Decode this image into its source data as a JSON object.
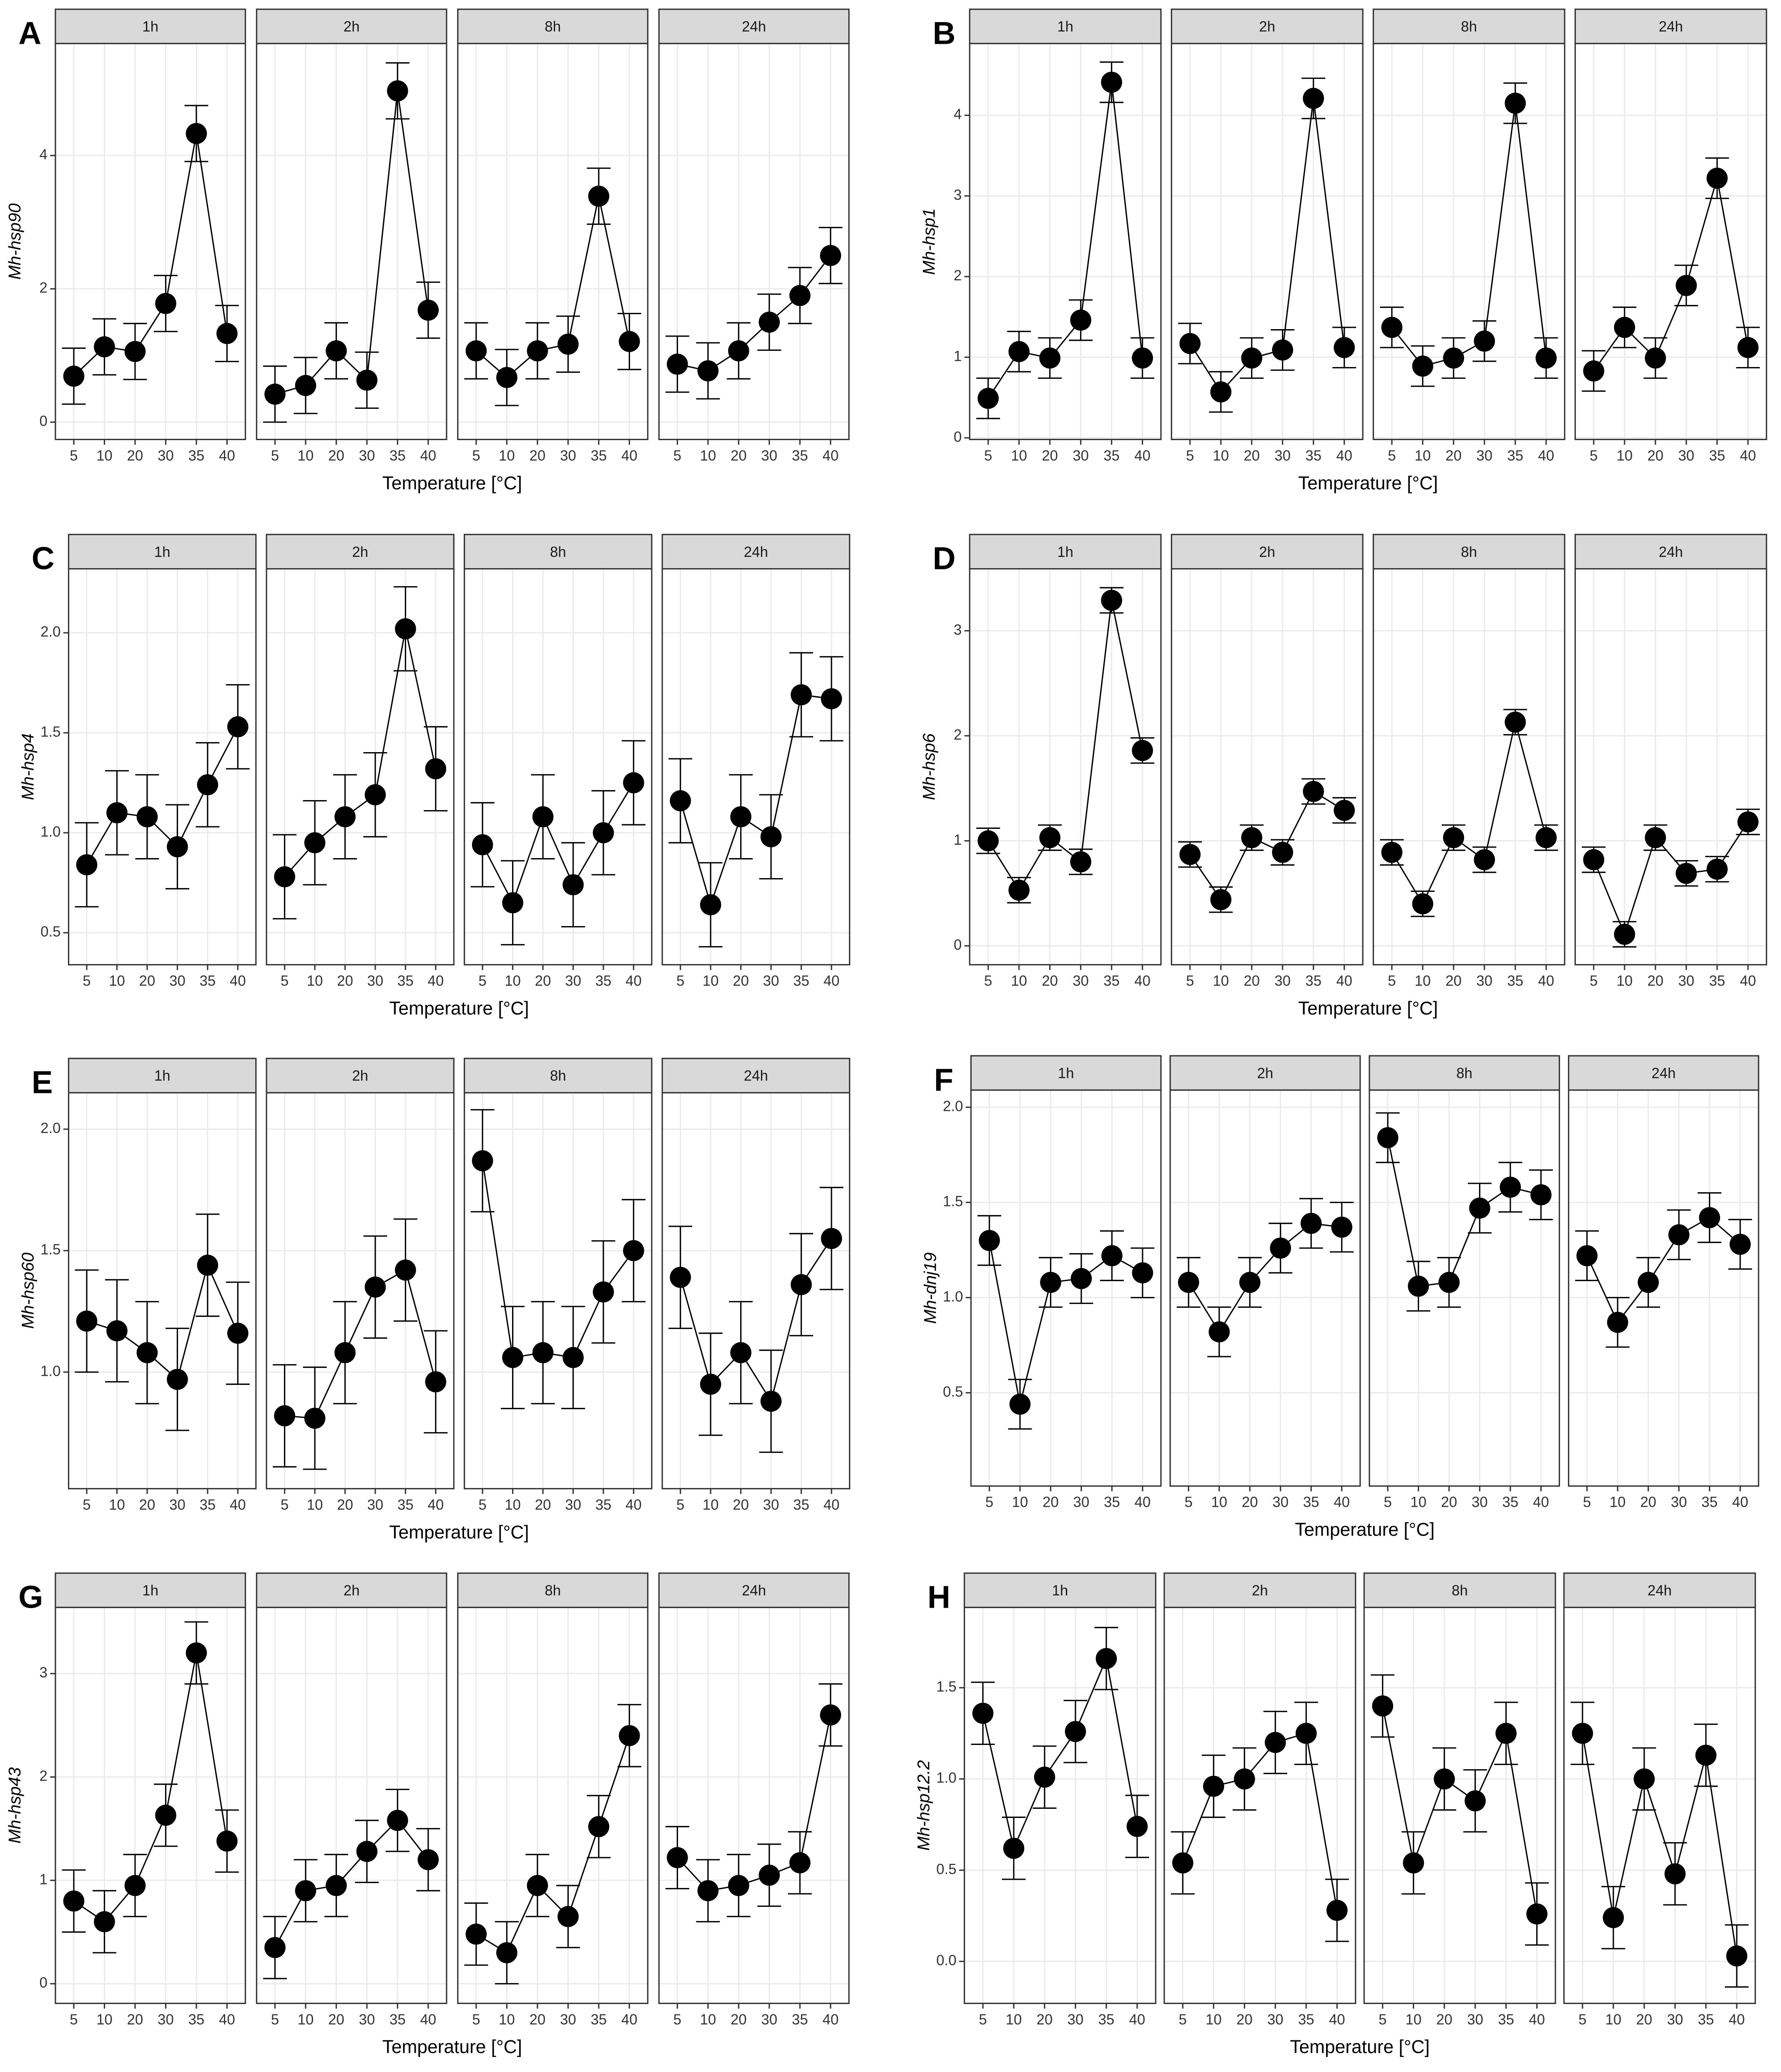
{
  "chart_data": [
    {
      "type": "line",
      "panel_label": "A",
      "ylabel": "Mh-hsp90",
      "xlabel": "Temperature [°C]",
      "color": "#000000",
      "categories": [
        "5",
        "10",
        "20",
        "30",
        "35",
        "40"
      ],
      "ylim": [
        -0.26,
        5.68
      ],
      "yticks": [
        0,
        2,
        4
      ],
      "grid": true,
      "facets": [
        {
          "title": "1h",
          "values": [
            0.69,
            1.13,
            1.06,
            1.78,
            4.33,
            1.33
          ],
          "errors": [
            0.42,
            0.42,
            0.42,
            0.42,
            0.42,
            0.42
          ]
        },
        {
          "title": "2h",
          "values": [
            0.42,
            0.55,
            1.07,
            0.63,
            4.97,
            1.68
          ],
          "errors": [
            0.42,
            0.42,
            0.42,
            0.42,
            0.42,
            0.42
          ]
        },
        {
          "title": "8h",
          "values": [
            1.07,
            0.67,
            1.07,
            1.17,
            3.39,
            1.21
          ],
          "errors": [
            0.42,
            0.42,
            0.42,
            0.42,
            0.42,
            0.42
          ]
        },
        {
          "title": "24h",
          "values": [
            0.87,
            0.77,
            1.07,
            1.5,
            1.9,
            2.5
          ],
          "errors": [
            0.42,
            0.42,
            0.42,
            0.42,
            0.42,
            0.42
          ]
        }
      ]
    },
    {
      "type": "line",
      "panel_label": "B",
      "ylabel": "Mh-hsp1",
      "xlabel": "Temperature [°C]",
      "color": "#000000",
      "categories": [
        "5",
        "10",
        "20",
        "30",
        "35",
        "40"
      ],
      "ylim": [
        -0.02,
        4.89
      ],
      "yticks": [
        0,
        1,
        2,
        3,
        4
      ],
      "grid": true,
      "facets": [
        {
          "title": "1h",
          "values": [
            0.49,
            1.07,
            0.99,
            1.46,
            4.41,
            0.99
          ],
          "errors": [
            0.25,
            0.25,
            0.25,
            0.25,
            0.25,
            0.25
          ]
        },
        {
          "title": "2h",
          "values": [
            1.17,
            0.57,
            0.99,
            1.09,
            4.21,
            1.12
          ],
          "errors": [
            0.25,
            0.25,
            0.25,
            0.25,
            0.25,
            0.25
          ]
        },
        {
          "title": "8h",
          "values": [
            1.37,
            0.89,
            0.99,
            1.2,
            4.15,
            0.99
          ],
          "errors": [
            0.25,
            0.25,
            0.25,
            0.25,
            0.25,
            0.25
          ]
        },
        {
          "title": "24h",
          "values": [
            0.83,
            1.37,
            0.99,
            1.89,
            3.22,
            1.12
          ],
          "errors": [
            0.25,
            0.25,
            0.25,
            0.25,
            0.25,
            0.25
          ]
        }
      ]
    },
    {
      "type": "line",
      "panel_label": "C",
      "ylabel": "Mh-hsp4",
      "xlabel": "Temperature [°C]",
      "color": "#000000",
      "categories": [
        "5",
        "10",
        "20",
        "30",
        "35",
        "40"
      ],
      "ylim": [
        0.34,
        2.32
      ],
      "yticks": [
        0.5,
        {
          "value": 1,
          "label": "1.0"
        },
        1.5,
        {
          "value": 2,
          "label": "2.0"
        }
      ],
      "grid": true,
      "facets": [
        {
          "title": "1h",
          "values": [
            0.84,
            1.1,
            1.08,
            0.93,
            1.24,
            1.53
          ],
          "errors": [
            0.21,
            0.21,
            0.21,
            0.21,
            0.21,
            0.21
          ]
        },
        {
          "title": "2h",
          "values": [
            0.78,
            0.95,
            1.08,
            1.19,
            2.02,
            1.32
          ],
          "errors": [
            0.21,
            0.21,
            0.21,
            0.21,
            0.21,
            0.21
          ]
        },
        {
          "title": "8h",
          "values": [
            0.94,
            0.65,
            1.08,
            0.74,
            1.0,
            1.25
          ],
          "errors": [
            0.21,
            0.21,
            0.21,
            0.21,
            0.21,
            0.21
          ]
        },
        {
          "title": "24h",
          "values": [
            1.16,
            0.64,
            1.08,
            0.98,
            1.69,
            1.67
          ],
          "errors": [
            0.21,
            0.21,
            0.21,
            0.21,
            0.21,
            0.21
          ]
        }
      ]
    },
    {
      "type": "line",
      "panel_label": "D",
      "ylabel": "Mh-hsp6",
      "xlabel": "Temperature [°C]",
      "color": "#000000",
      "categories": [
        "5",
        "10",
        "20",
        "30",
        "35",
        "40"
      ],
      "ylim": [
        -0.18,
        3.59
      ],
      "yticks": [
        0,
        1,
        2,
        3
      ],
      "grid": true,
      "facets": [
        {
          "title": "1h",
          "values": [
            1.0,
            0.53,
            1.03,
            0.8,
            3.29,
            1.86
          ],
          "errors": [
            0.12,
            0.12,
            0.12,
            0.12,
            0.12,
            0.12
          ]
        },
        {
          "title": "2h",
          "values": [
            0.87,
            0.44,
            1.03,
            0.89,
            1.47,
            1.29
          ],
          "errors": [
            0.12,
            0.12,
            0.12,
            0.12,
            0.12,
            0.12
          ]
        },
        {
          "title": "8h",
          "values": [
            0.89,
            0.4,
            1.03,
            0.82,
            2.13,
            1.03
          ],
          "errors": [
            0.12,
            0.12,
            0.12,
            0.12,
            0.12,
            0.12
          ]
        },
        {
          "title": "24h",
          "values": [
            0.82,
            0.11,
            1.03,
            0.69,
            0.73,
            1.18
          ],
          "errors": [
            0.12,
            0.12,
            0.12,
            0.12,
            0.12,
            0.12
          ]
        }
      ]
    },
    {
      "type": "line",
      "panel_label": "E",
      "ylabel": "Mh-hsp60",
      "xlabel": "Temperature [°C]",
      "color": "#000000",
      "categories": [
        "5",
        "10",
        "20",
        "30",
        "35",
        "40"
      ],
      "ylim": [
        0.52,
        2.15
      ],
      "yticks": [
        {
          "value": 1,
          "label": "1.0"
        },
        1.5,
        {
          "value": 2,
          "label": "2.0"
        }
      ],
      "grid": true,
      "facets": [
        {
          "title": "1h",
          "values": [
            1.21,
            1.17,
            1.08,
            0.97,
            1.44,
            1.16
          ],
          "errors": [
            0.21,
            0.21,
            0.21,
            0.21,
            0.21,
            0.21
          ]
        },
        {
          "title": "2h",
          "values": [
            0.82,
            0.81,
            1.08,
            1.35,
            1.42,
            0.96
          ],
          "errors": [
            0.21,
            0.21,
            0.21,
            0.21,
            0.21,
            0.21
          ]
        },
        {
          "title": "8h",
          "values": [
            1.87,
            1.06,
            1.08,
            1.06,
            1.33,
            1.5
          ],
          "errors": [
            0.21,
            0.21,
            0.21,
            0.21,
            0.21,
            0.21
          ]
        },
        {
          "title": "24h",
          "values": [
            1.39,
            0.95,
            1.08,
            0.88,
            1.36,
            1.55
          ],
          "errors": [
            0.21,
            0.21,
            0.21,
            0.21,
            0.21,
            0.21
          ]
        }
      ]
    },
    {
      "type": "line",
      "panel_label": "F",
      "ylabel": "Mh-dnj19",
      "xlabel": "Temperature [°C]",
      "color": "#000000",
      "categories": [
        "5",
        "10",
        "20",
        "30",
        "35",
        "40"
      ],
      "ylim": [
        0.01,
        2.09
      ],
      "yticks": [
        0.5,
        {
          "value": 1,
          "label": "1.0"
        },
        1.5,
        {
          "value": 2,
          "label": "2.0"
        }
      ],
      "grid": true,
      "facets": [
        {
          "title": "1h",
          "values": [
            1.3,
            0.44,
            1.08,
            1.1,
            1.22,
            1.13
          ],
          "errors": [
            0.13,
            0.13,
            0.13,
            0.13,
            0.13,
            0.13
          ]
        },
        {
          "title": "2h",
          "values": [
            1.08,
            0.82,
            1.08,
            1.26,
            1.39,
            1.37
          ],
          "errors": [
            0.13,
            0.13,
            0.13,
            0.13,
            0.13,
            0.13
          ]
        },
        {
          "title": "8h",
          "values": [
            1.84,
            1.06,
            1.08,
            1.47,
            1.58,
            1.54
          ],
          "errors": [
            0.13,
            0.13,
            0.13,
            0.13,
            0.13,
            0.13
          ]
        },
        {
          "title": "24h",
          "values": [
            1.22,
            0.87,
            1.08,
            1.33,
            1.42,
            1.28
          ],
          "errors": [
            0.13,
            0.13,
            0.13,
            0.13,
            0.13,
            0.13
          ]
        }
      ]
    },
    {
      "type": "line",
      "panel_label": "G",
      "ylabel": "Mh-hsp43",
      "xlabel": "Temperature [°C]",
      "color": "#000000",
      "categories": [
        "5",
        "10",
        "20",
        "30",
        "35",
        "40"
      ],
      "ylim": [
        -0.19,
        3.64
      ],
      "yticks": [
        0,
        1,
        2,
        3
      ],
      "grid": true,
      "facets": [
        {
          "title": "1h",
          "values": [
            0.8,
            0.6,
            0.95,
            1.63,
            3.2,
            1.38
          ],
          "errors": [
            0.3,
            0.3,
            0.3,
            0.3,
            0.3,
            0.3
          ]
        },
        {
          "title": "2h",
          "values": [
            0.35,
            0.9,
            0.95,
            1.28,
            1.58,
            1.2
          ],
          "errors": [
            0.3,
            0.3,
            0.3,
            0.3,
            0.3,
            0.3
          ]
        },
        {
          "title": "8h",
          "values": [
            0.48,
            0.3,
            0.95,
            0.65,
            1.52,
            2.4
          ],
          "errors": [
            0.3,
            0.3,
            0.3,
            0.3,
            0.3,
            0.3
          ]
        },
        {
          "title": "24h",
          "values": [
            1.22,
            0.9,
            0.95,
            1.05,
            1.17,
            2.6
          ],
          "errors": [
            0.3,
            0.3,
            0.3,
            0.3,
            0.3,
            0.3
          ]
        }
      ]
    },
    {
      "type": "line",
      "panel_label": "H",
      "ylabel": "Mh-hsp12.2",
      "xlabel": "Temperature [°C]",
      "color": "#000000",
      "categories": [
        "5",
        "10",
        "20",
        "30",
        "35",
        "40"
      ],
      "ylim": [
        -0.23,
        1.94
      ],
      "yticks": [
        {
          "value": 0,
          "label": "0.0"
        },
        0.5,
        {
          "value": 1,
          "label": "1.0"
        },
        1.5
      ],
      "grid": true,
      "facets": [
        {
          "title": "1h",
          "values": [
            1.36,
            0.62,
            1.01,
            1.26,
            1.66,
            0.74
          ],
          "errors": [
            0.17,
            0.17,
            0.17,
            0.17,
            0.17,
            0.17
          ]
        },
        {
          "title": "2h",
          "values": [
            0.54,
            0.96,
            1.0,
            1.2,
            1.25,
            0.28
          ],
          "errors": [
            0.17,
            0.17,
            0.17,
            0.17,
            0.17,
            0.17
          ]
        },
        {
          "title": "8h",
          "values": [
            1.4,
            0.54,
            1.0,
            0.88,
            1.25,
            0.26
          ],
          "errors": [
            0.17,
            0.17,
            0.17,
            0.17,
            0.17,
            0.17
          ]
        },
        {
          "title": "24h",
          "values": [
            1.25,
            0.24,
            1.0,
            0.48,
            1.13,
            0.03
          ],
          "errors": [
            0.17,
            0.17,
            0.17,
            0.17,
            0.17,
            0.17
          ]
        }
      ]
    }
  ]
}
